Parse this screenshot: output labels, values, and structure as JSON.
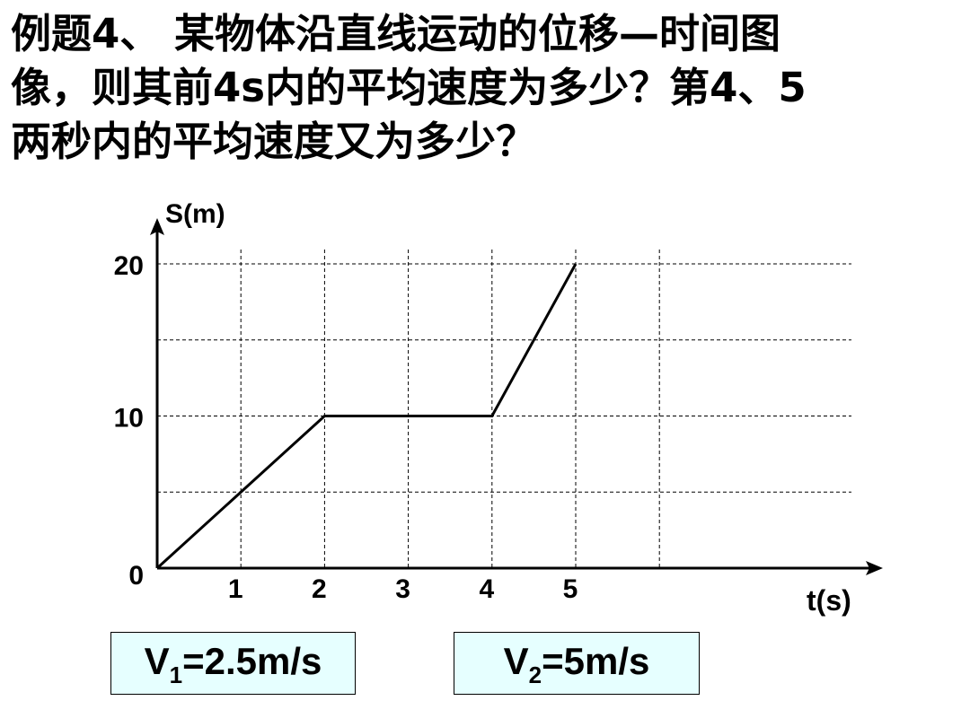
{
  "question": {
    "lines": [
      "例题4、  某物体沿直线运动的位移—时间图",
      "像，则其前4s内的平均速度为多少？第4、5",
      "两秒内的平均速度又为多少？"
    ]
  },
  "chart_data": {
    "type": "line",
    "ylabel": "S(m)",
    "xlabel": "t(s)",
    "x_ticks": [
      "1",
      "2",
      "3",
      "4",
      "5"
    ],
    "y_ticks": [
      "0",
      "10",
      "20"
    ],
    "xlim": [
      0,
      8.5
    ],
    "ylim": [
      0,
      20
    ],
    "grid": true,
    "series": [
      {
        "x": [
          0,
          2,
          4,
          5
        ],
        "y": [
          0,
          10,
          10,
          20
        ]
      }
    ]
  },
  "answers": {
    "v1": {
      "symbol": "V",
      "sub": "1",
      "value": "=2.5m/s"
    },
    "v2": {
      "symbol": "V",
      "sub": "2",
      "value": "=5m/s"
    }
  }
}
